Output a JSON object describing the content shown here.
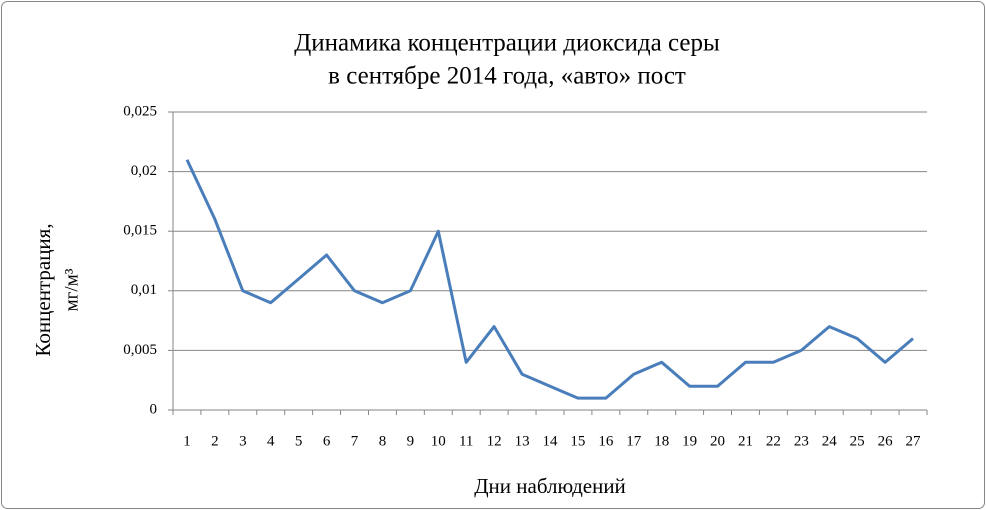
{
  "chart_data": {
    "type": "line",
    "title": [
      "Динамика концентрации диоксида серы",
      "в сентябре 2014 года, «авто» пост"
    ],
    "y_label": [
      "Концентрация,",
      "мг/м³"
    ],
    "x_label": "Дни наблюдений",
    "categories": [
      "1",
      "2",
      "3",
      "4",
      "5",
      "6",
      "7",
      "8",
      "9",
      "10",
      "11",
      "12",
      "13",
      "14",
      "15",
      "16",
      "17",
      "18",
      "19",
      "20",
      "21",
      "22",
      "23",
      "24",
      "25",
      "26",
      "27"
    ],
    "series": [
      {
        "name": "Концентрация",
        "color": "#4a7ebb",
        "values": [
          0.021,
          0.016,
          0.01,
          0.009,
          0.011,
          0.013,
          0.01,
          0.009,
          0.01,
          0.015,
          0.004,
          0.007,
          0.003,
          0.002,
          0.001,
          0.001,
          0.003,
          0.004,
          0.002,
          0.002,
          0.004,
          0.004,
          0.005,
          0.007,
          0.006,
          0.004,
          0.006
        ]
      }
    ],
    "ylim": [
      0,
      0.025
    ],
    "yticks": [
      0,
      {
        "value": 0.005,
        "label": "0,005"
      },
      {
        "value": 0.01,
        "label": "0,01"
      },
      {
        "value": 0.015,
        "label": "0,015"
      },
      {
        "value": 0.02,
        "label": "0,02"
      },
      {
        "value": 0.025,
        "label": "0,025"
      }
    ],
    "grid": true
  }
}
